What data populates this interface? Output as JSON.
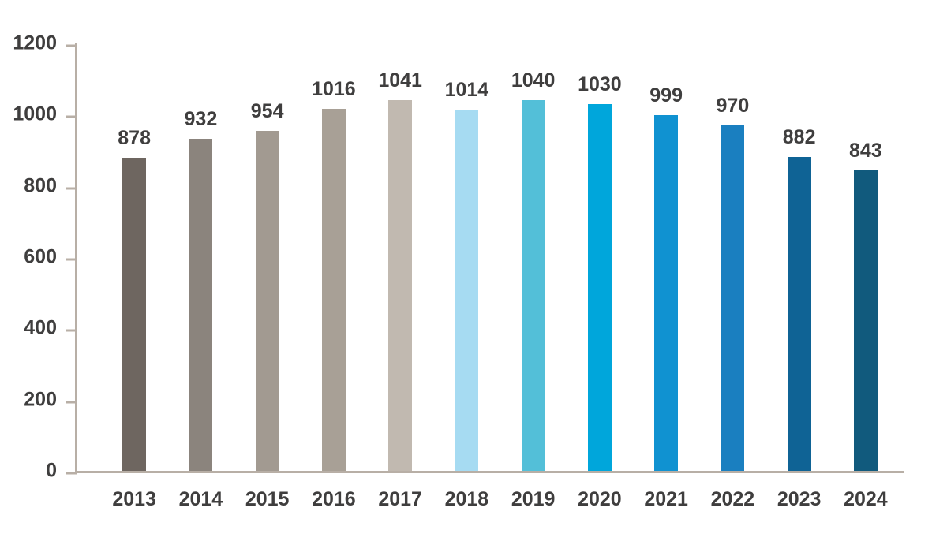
{
  "chart_data": {
    "type": "bar",
    "title": "",
    "xlabel": "",
    "ylabel": "",
    "categories": [
      "2013",
      "2014",
      "2015",
      "2016",
      "2017",
      "2018",
      "2019",
      "2020",
      "2021",
      "2022",
      "2023",
      "2024"
    ],
    "values": [
      878,
      932,
      954,
      1016,
      1041,
      1014,
      1040,
      1030,
      999,
      970,
      882,
      843
    ],
    "bar_colors": [
      "#6e6660",
      "#8b847d",
      "#a29a91",
      "#a8a096",
      "#c1b9b0",
      "#a6dbf2",
      "#53bfd8",
      "#00a6db",
      "#1092d1",
      "#1a7fc0",
      "#0f6395",
      "#115a7d"
    ],
    "ylim": [
      0,
      1200
    ],
    "yticks": [
      0,
      200,
      400,
      600,
      800,
      1000,
      1200
    ],
    "grid": false,
    "legend": "none",
    "value_labels": "above-bars",
    "axis_color": "#b8afa6",
    "text_color": "#3f3e3e",
    "background_color": "#ffffff"
  }
}
